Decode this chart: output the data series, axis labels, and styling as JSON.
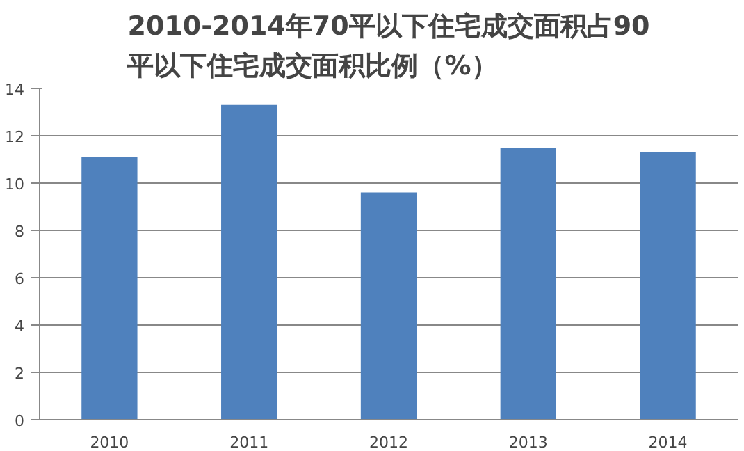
{
  "chart_data": {
    "type": "bar",
    "title": "2010-2014年70平以下住宅成交面积占90平以下住宅成交面积比例（%）",
    "categories": [
      "2010",
      "2011",
      "2012",
      "2013",
      "2014"
    ],
    "values": [
      11.1,
      13.3,
      9.6,
      11.5,
      11.3
    ],
    "color": "#4f81bd",
    "ylim": [
      0,
      14
    ],
    "yticks": [
      0,
      2,
      4,
      6,
      8,
      10,
      12,
      14
    ],
    "grid": "y"
  }
}
